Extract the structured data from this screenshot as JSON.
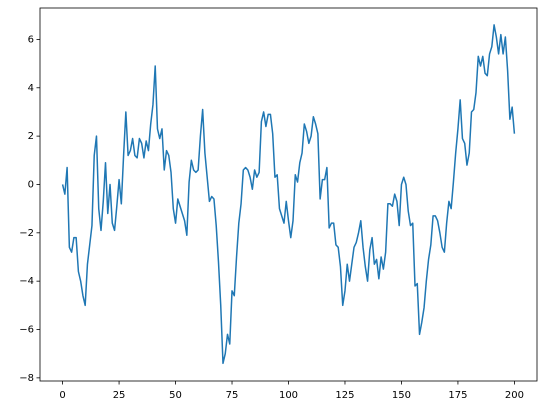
{
  "chart_data": {
    "type": "line",
    "color": "#1f77b4",
    "x": [
      0,
      1,
      2,
      3,
      4,
      5,
      6,
      7,
      8,
      9,
      10,
      11,
      12,
      13,
      14,
      15,
      16,
      17,
      18,
      19,
      20,
      21,
      22,
      23,
      24,
      25,
      26,
      27,
      28,
      29,
      30,
      31,
      32,
      33,
      34,
      35,
      36,
      37,
      38,
      39,
      40,
      41,
      42,
      43,
      44,
      45,
      46,
      47,
      48,
      49,
      50,
      51,
      52,
      53,
      54,
      55,
      56,
      57,
      58,
      59,
      60,
      61,
      62,
      63,
      64,
      65,
      66,
      67,
      68,
      69,
      70,
      71,
      72,
      73,
      74,
      75,
      76,
      77,
      78,
      79,
      80,
      81,
      82,
      83,
      84,
      85,
      86,
      87,
      88,
      89,
      90,
      91,
      92,
      93,
      94,
      95,
      96,
      97,
      98,
      99,
      100,
      101,
      102,
      103,
      104,
      105,
      106,
      107,
      108,
      109,
      110,
      111,
      112,
      113,
      114,
      115,
      116,
      117,
      118,
      119,
      120,
      121,
      122,
      123,
      124,
      125,
      126,
      127,
      128,
      129,
      130,
      131,
      132,
      133,
      134,
      135,
      136,
      137,
      138,
      139,
      140,
      141,
      142,
      143,
      144,
      145,
      146,
      147,
      148,
      149,
      150,
      151,
      152,
      153,
      154,
      155,
      156,
      157,
      158,
      159,
      160,
      161,
      162,
      163,
      164,
      165,
      166,
      167,
      168,
      169,
      170,
      171,
      172,
      173,
      174,
      175,
      176,
      177,
      178,
      179,
      180,
      181,
      182,
      183,
      184,
      185,
      186,
      187,
      188,
      189,
      190,
      191,
      192,
      193,
      194,
      195,
      196,
      197,
      198,
      199,
      200
    ],
    "values": [
      0,
      -0.4,
      0.7,
      -2.6,
      -2.8,
      -2.2,
      -2.2,
      -3.6,
      -4,
      -4.6,
      -5,
      -3.3,
      -2.5,
      -1.7,
      1.2,
      2.0,
      -1.0,
      -1.9,
      -0.7,
      0.9,
      -1.2,
      0.0,
      -1.6,
      -1.9,
      -0.9,
      0.2,
      -0.8,
      1.2,
      3.0,
      1.2,
      1.4,
      1.9,
      1.2,
      1.1,
      1.9,
      1.7,
      1.1,
      1.8,
      1.4,
      2.5,
      3.3,
      4.9,
      2.3,
      1.9,
      2.3,
      0.6,
      1.4,
      1.2,
      0.5,
      -1.0,
      -1.6,
      -0.6,
      -0.9,
      -1.2,
      -1.5,
      -2.1,
      0.1,
      1.0,
      0.6,
      0.5,
      0.6,
      2.0,
      3.1,
      1.3,
      0.3,
      -0.7,
      -0.5,
      -0.6,
      -1.7,
      -3.2,
      -5.0,
      -7.4,
      -7.0,
      -6.2,
      -6.6,
      -4.4,
      -4.6,
      -3.0,
      -1.6,
      -0.8,
      0.6,
      0.7,
      0.6,
      0.3,
      -0.2,
      0.6,
      0.3,
      0.5,
      2.6,
      3.0,
      2.4,
      2.9,
      2.9,
      2.1,
      0.3,
      0.4,
      -1.0,
      -1.3,
      -1.6,
      -0.7,
      -1.5,
      -2.2,
      -1.5,
      0.4,
      0.1,
      0.9,
      1.3,
      2.5,
      2.2,
      1.7,
      2.0,
      2.8,
      2.5,
      2.1,
      -0.6,
      0.2,
      0.2,
      0.7,
      -1.8,
      -1.6,
      -1.6,
      -2.5,
      -2.6,
      -3.4,
      -5.0,
      -4.4,
      -3.3,
      -4.0,
      -3.3,
      -2.6,
      -2.4,
      -2.0,
      -1.5,
      -2.6,
      -3.4,
      -4.0,
      -2.7,
      -2.2,
      -3.3,
      -3.1,
      -3.9,
      -3.0,
      -3.5,
      -2.8,
      -0.8,
      -0.8,
      -0.9,
      -0.4,
      -0.7,
      -1.7,
      0.0,
      0.3,
      0.0,
      -1.1,
      -1.7,
      -1.6,
      -4.2,
      -4.1,
      -6.2,
      -5.7,
      -5.1,
      -4.0,
      -3.1,
      -2.5,
      -1.3,
      -1.3,
      -1.5,
      -2.0,
      -2.6,
      -2.8,
      -1.6,
      -0.7,
      -1.0,
      0.1,
      1.3,
      2.3,
      3.5,
      1.9,
      1.7,
      0.8,
      1.3,
      3.0,
      3.1,
      3.8,
      5.3,
      4.9,
      5.3,
      4.6,
      4.5,
      5.4,
      5.7,
      6.6,
      6.1,
      5.4,
      6.2,
      5.4,
      6.1,
      4.7,
      2.7,
      3.2,
      2.1
    ],
    "xlim": [
      -10,
      210
    ],
    "ylim": [
      -8.13,
      7.3
    ],
    "xticks": [
      0,
      25,
      50,
      75,
      100,
      125,
      150,
      175,
      200
    ],
    "yticks": [
      {
        "value": -8,
        "label": "−8"
      },
      {
        "value": -6,
        "label": "−6"
      },
      {
        "value": -4,
        "label": "−4"
      },
      {
        "value": -2,
        "label": "−2"
      },
      0,
      2,
      4,
      6
    ]
  }
}
